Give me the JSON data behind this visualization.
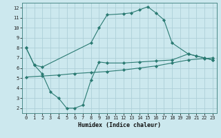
{
  "xlabel": "Humidex (Indice chaleur)",
  "bg_color": "#cce8ee",
  "grid_color": "#aed0d8",
  "line_color": "#2a7a72",
  "xlim": [
    -0.5,
    23.5
  ],
  "ylim": [
    1.5,
    12.5
  ],
  "yticks": [
    2,
    3,
    4,
    5,
    6,
    7,
    8,
    9,
    10,
    11,
    12
  ],
  "xticks": [
    0,
    1,
    2,
    3,
    4,
    5,
    6,
    7,
    8,
    9,
    10,
    11,
    12,
    13,
    14,
    15,
    16,
    17,
    18,
    19,
    20,
    21,
    22,
    23
  ],
  "line1_x": [
    0,
    1,
    2,
    8,
    9,
    10,
    12,
    13,
    14,
    15,
    16,
    17,
    18,
    20,
    21,
    22,
    23
  ],
  "line1_y": [
    8.0,
    6.3,
    6.1,
    8.5,
    10.0,
    11.3,
    11.4,
    11.5,
    11.8,
    12.1,
    11.5,
    10.8,
    8.5,
    7.4,
    7.2,
    7.0,
    6.8
  ],
  "line2_x": [
    0,
    2,
    4,
    6,
    8,
    10,
    12,
    14,
    16,
    18,
    20,
    22,
    23
  ],
  "line2_y": [
    5.1,
    5.2,
    5.3,
    5.45,
    5.55,
    5.65,
    5.8,
    6.0,
    6.2,
    6.5,
    6.8,
    6.95,
    7.0
  ],
  "line3_x": [
    0,
    1,
    2,
    3,
    4,
    5,
    6,
    7,
    8,
    9,
    10,
    12,
    14,
    16,
    18,
    20,
    21,
    22,
    23
  ],
  "line3_y": [
    8.0,
    6.3,
    5.4,
    3.6,
    3.0,
    2.0,
    2.0,
    2.3,
    4.8,
    6.6,
    6.5,
    6.5,
    6.6,
    6.7,
    6.8,
    7.4,
    7.2,
    7.0,
    6.8
  ]
}
